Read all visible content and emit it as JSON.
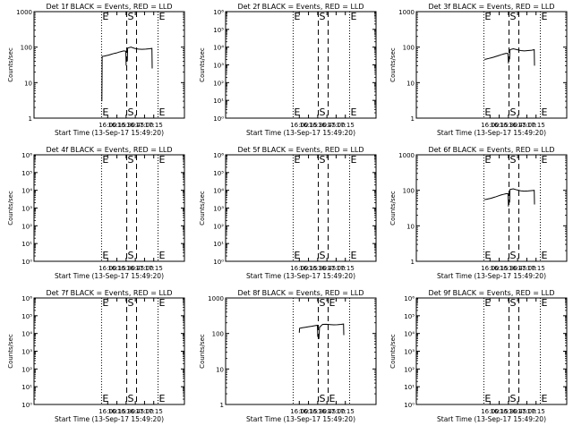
{
  "xlabel": "Start Time (13-Sep-17 15:49:20)",
  "ylabel": "Counts/sec",
  "xlim": [
    960,
    1205
  ],
  "xticks": [
    {
      "value": 1080,
      "label": "16:00"
    },
    {
      "value": 1095,
      "label": "16:15"
    },
    {
      "value": 1110,
      "label": "16:30"
    },
    {
      "value": 1125,
      "label": "16:45"
    },
    {
      "value": 1140,
      "label": "17:00"
    },
    {
      "value": 1155,
      "label": "17:15"
    }
  ],
  "xticks_note": "x values are minutes after midnight on 13-Sep-17",
  "chart_data": [
    {
      "type": "line",
      "title": "Det 1f BLACK = Events, RED = LLD",
      "yscale": "log",
      "ylim": [
        1,
        1000
      ],
      "ytick_labels": [
        "1",
        "10",
        "100",
        "1000"
      ],
      "dotted_x": [
        1070,
        1162
      ],
      "dashed_x": [
        1111,
        1127
      ],
      "markers": [
        {
          "text": "E",
          "x": 1070
        },
        {
          "text": "S",
          "x": 1111
        },
        {
          "text": "E",
          "x": 1162
        }
      ],
      "series": [
        {
          "x": [
            1070.5,
            1071,
            1074,
            1078,
            1082,
            1086,
            1090,
            1094,
            1098,
            1102,
            1106,
            1109.5,
            1110
          ],
          "y": [
            3,
            55,
            56,
            58,
            60,
            63,
            66,
            68,
            72,
            75,
            78,
            77,
            30
          ]
        },
        {
          "x": [
            1112,
            1112.5,
            1118,
            1124,
            1130,
            1136,
            1142,
            1148,
            1152,
            1152.5
          ],
          "y": [
            40,
            95,
            100,
            92,
            88,
            87,
            88,
            90,
            92,
            25
          ]
        }
      ]
    },
    {
      "type": "line",
      "title": "Det 2f BLACK = Events, RED = LLD",
      "yscale": "log",
      "ylim": [
        1,
        1000000
      ],
      "ytick_labels": [
        "10⁰",
        "10¹",
        "10²",
        "10³",
        "10⁴",
        "10⁵",
        "10⁶"
      ],
      "dotted_x": [
        1070,
        1162
      ],
      "dashed_x": [
        1111,
        1127
      ],
      "markers": [
        {
          "text": "E",
          "x": 1070
        },
        {
          "text": "S",
          "x": 1111
        },
        {
          "text": "E",
          "x": 1162
        }
      ],
      "series": []
    },
    {
      "type": "line",
      "title": "Det 3f BLACK = Events, RED = LLD",
      "yscale": "log",
      "ylim": [
        1,
        1000
      ],
      "ytick_labels": [
        "1",
        "10",
        "100",
        "1000"
      ],
      "dotted_x": [
        1070,
        1162
      ],
      "dashed_x": [
        1111,
        1127
      ],
      "markers": [
        {
          "text": "E",
          "x": 1070
        },
        {
          "text": "S",
          "x": 1111
        },
        {
          "text": "E",
          "x": 1162
        }
      ],
      "series": [
        {
          "x": [
            1071,
            1074,
            1078,
            1082,
            1086,
            1090,
            1094,
            1098,
            1102,
            1106,
            1109.5,
            1110
          ],
          "y": [
            45,
            46,
            48,
            50,
            52,
            55,
            58,
            61,
            64,
            67,
            66,
            35
          ]
        },
        {
          "x": [
            1112,
            1112.5,
            1118,
            1124,
            1130,
            1136,
            1142,
            1148,
            1152,
            1152.5
          ],
          "y": [
            45,
            85,
            90,
            85,
            80,
            78,
            80,
            82,
            85,
            30
          ]
        }
      ]
    },
    {
      "type": "line",
      "title": "Det 4f BLACK = Events, RED = LLD",
      "yscale": "log",
      "ylim": [
        1,
        1000000
      ],
      "ytick_labels": [
        "10⁰",
        "10¹",
        "10²",
        "10³",
        "10⁴",
        "10⁵",
        "10⁶"
      ],
      "dotted_x": [
        1070,
        1162
      ],
      "dashed_x": [
        1111,
        1127
      ],
      "markers": [
        {
          "text": "E",
          "x": 1070
        },
        {
          "text": "S",
          "x": 1111
        },
        {
          "text": "E",
          "x": 1162
        }
      ],
      "series": []
    },
    {
      "type": "line",
      "title": "Det 5f BLACK = Events, RED = LLD",
      "yscale": "log",
      "ylim": [
        1,
        1000000
      ],
      "ytick_labels": [
        "10⁰",
        "10¹",
        "10²",
        "10³",
        "10⁴",
        "10⁵",
        "10⁶"
      ],
      "dotted_x": [
        1070,
        1162
      ],
      "dashed_x": [
        1111,
        1127
      ],
      "markers": [
        {
          "text": "E",
          "x": 1070
        },
        {
          "text": "S",
          "x": 1111
        },
        {
          "text": "E",
          "x": 1162
        }
      ],
      "series": []
    },
    {
      "type": "line",
      "title": "Det 6f BLACK = Events, RED = LLD",
      "yscale": "log",
      "ylim": [
        1,
        1000
      ],
      "ytick_labels": [
        "1",
        "10",
        "100",
        "1000"
      ],
      "dotted_x": [
        1070,
        1162
      ],
      "dashed_x": [
        1111,
        1127
      ],
      "markers": [
        {
          "text": "E",
          "x": 1070
        },
        {
          "text": "S",
          "x": 1111
        },
        {
          "text": "E",
          "x": 1162
        }
      ],
      "series": [
        {
          "x": [
            1071,
            1074,
            1078,
            1082,
            1086,
            1090,
            1094,
            1098,
            1102,
            1106,
            1109.5,
            1110
          ],
          "y": [
            55,
            56,
            58,
            60,
            63,
            66,
            70,
            74,
            77,
            80,
            80,
            35
          ]
        },
        {
          "x": [
            1112,
            1112.5,
            1118,
            1124,
            1130,
            1136,
            1142,
            1148,
            1152,
            1152.5
          ],
          "y": [
            45,
            105,
            110,
            102,
            97,
            95,
            96,
            98,
            100,
            40
          ]
        }
      ]
    },
    {
      "type": "line",
      "title": "Det 7f BLACK = Events, RED = LLD",
      "yscale": "log",
      "ylim": [
        1,
        1000000
      ],
      "ytick_labels": [
        "10⁰",
        "10¹",
        "10²",
        "10³",
        "10⁴",
        "10⁵",
        "10⁶"
      ],
      "dotted_x": [
        1070,
        1162
      ],
      "dashed_x": [
        1111,
        1127
      ],
      "markers": [
        {
          "text": "E",
          "x": 1070
        },
        {
          "text": "S",
          "x": 1111
        },
        {
          "text": "E",
          "x": 1162
        }
      ],
      "series": []
    },
    {
      "type": "line",
      "title": "Det 8f BLACK = Events, RED = LLD",
      "yscale": "log",
      "ylim": [
        1,
        1000
      ],
      "ytick_labels": [
        "1",
        "10",
        "100",
        "1000"
      ],
      "dotted_x": [
        1070,
        1162
      ],
      "dashed_x": [
        1111,
        1127
      ],
      "markers": [
        {
          "text": "S",
          "x": 1111
        },
        {
          "text": "E",
          "x": 1127
        }
      ],
      "series": [
        {
          "x": [
            1080,
            1080.5,
            1085,
            1090,
            1095,
            1100,
            1105,
            1109.5,
            1110
          ],
          "y": [
            105,
            140,
            145,
            150,
            155,
            160,
            165,
            170,
            80
          ]
        },
        {
          "x": [
            1112,
            1113,
            1118,
            1124,
            1130,
            1136,
            1142,
            1148,
            1152,
            1152.5
          ],
          "y": [
            70,
            150,
            180,
            182,
            178,
            175,
            176,
            180,
            185,
            90
          ]
        }
      ]
    },
    {
      "type": "line",
      "title": "Det 9f BLACK = Events, RED = LLD",
      "yscale": "log",
      "ylim": [
        1,
        1000000
      ],
      "ytick_labels": [
        "10⁰",
        "10¹",
        "10²",
        "10³",
        "10⁴",
        "10⁵",
        "10⁶"
      ],
      "dotted_x": [
        1070,
        1162
      ],
      "dashed_x": [
        1111,
        1127
      ],
      "markers": [
        {
          "text": "E",
          "x": 1070
        },
        {
          "text": "S",
          "x": 1111
        },
        {
          "text": "E",
          "x": 1162
        }
      ],
      "series": []
    }
  ]
}
